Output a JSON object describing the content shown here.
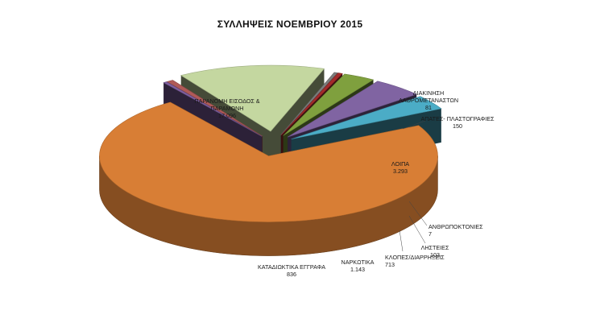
{
  "chart_data": {
    "type": "pie",
    "title": "ΣΥΛΛΗΨΕΙΣ ΝΟΕΜΒΡΙΟΥ 2015",
    "slices": [
      {
        "label": "ΠΑΡΑΝΟΜΗ ΕΙΣΟΔΟΣ & ΠΑΡΑΜΟΝΗ",
        "value": 17096,
        "display": "17.096",
        "color": "#d87e35"
      },
      {
        "label": "ΔΙΑΚΙΝΗΣΗ ΛΑΘΡΟΜΕΤΑΝΑΣΤΩΝ",
        "value": 81,
        "display": "81",
        "color": "#7f5fa0"
      },
      {
        "label": "ΑΠΑΤΕΣ- ΠΛΑΣΤΟΓΡΑΦΙΕΣ",
        "value": 150,
        "display": "150",
        "color": "#b05a58"
      },
      {
        "label": "ΛΟΙΠΑ",
        "value": 3293,
        "display": "3.293",
        "color": "#c4d7a0"
      },
      {
        "label": "ΑΝΘΡΩΠΟΚΤΟΝΙΕΣ",
        "value": 7,
        "display": "7",
        "color": "#7d7d7d"
      },
      {
        "label": "ΛΗΣΤΕΙΕΣ",
        "value": 103,
        "display": "103",
        "color": "#a32b2b"
      },
      {
        "label": "ΚΛΟΠΕΣ/ΔΙΑΡΡΗΞΕΙΣ",
        "value": 713,
        "display": "713",
        "color": "#7fa03e"
      },
      {
        "label": "ΝΑΡΚΩΤΙΚΑ",
        "value": 1143,
        "display": "1.143",
        "color": "#8064a2"
      },
      {
        "label": "ΚΑΤΑΔΙΩΚΤΙΚΑ ΕΓΓΡΑΦΑ",
        "value": 836,
        "display": "836",
        "color": "#4bacc6"
      }
    ],
    "legend": "none",
    "style": "3d-exploded"
  }
}
